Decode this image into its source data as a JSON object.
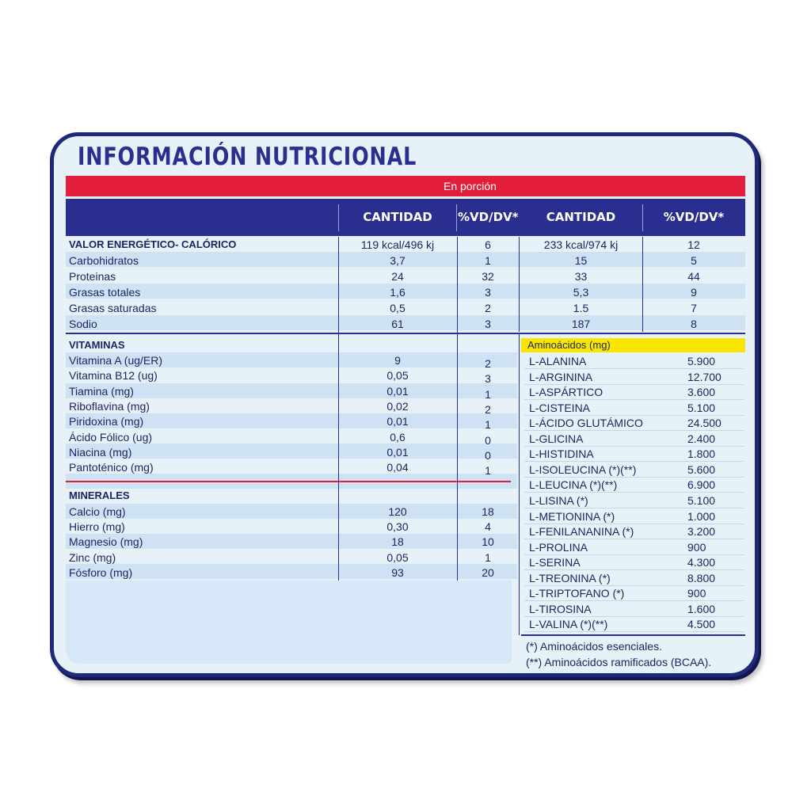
{
  "title": "INFORMACIÓN NUTRICIONAL",
  "portion_label": "En porción",
  "headers": [
    "CANTIDAD",
    "%VD/DV*",
    "CANTIDAD",
    "%VD/DV*"
  ],
  "colors": {
    "navy": "#2a2f8f",
    "red": "#e31e3a",
    "yellow": "#f8e600",
    "panel": "#e6f1f8",
    "band": "#cfe2f3"
  },
  "energy_rows": [
    {
      "label": "VALOR ENERGÉTICO- CALÓRICO",
      "q1": "119 kcal/496 kj",
      "p1": "6",
      "q2": "233 kcal/974 kj",
      "p2": "12"
    },
    {
      "label": "Carbohidratos",
      "q1": "3,7",
      "p1": "1",
      "q2": "15",
      "p2": "5"
    },
    {
      "label": "Proteinas",
      "q1": "24",
      "p1": "32",
      "q2": "33",
      "p2": "44"
    },
    {
      "label": "Grasas totales",
      "q1": "1,6",
      "p1": "3",
      "q2": "5,3",
      "p2": "9"
    },
    {
      "label": "Grasas saturadas",
      "q1": "0,5",
      "p1": "2",
      "q2": "1.5",
      "p2": "7"
    },
    {
      "label": "Sodio",
      "q1": "61",
      "p1": "3",
      "q2": "187",
      "p2": "8"
    }
  ],
  "vitamins_title": "VITAMINAS",
  "vitamins": [
    {
      "label": "Vitamina A (ug/ER)",
      "q": "9",
      "p": "2"
    },
    {
      "label": "Vitamina B12 (ug)",
      "q": "0,05",
      "p": "3"
    },
    {
      "label": "Tiamina (mg)",
      "q": "0,01",
      "p": "1"
    },
    {
      "label": "Riboflavina (mg)",
      "q": "0,02",
      "p": "2"
    },
    {
      "label": "Piridoxina (mg)",
      "q": "0,01",
      "p": "1"
    },
    {
      "label": "Ácido Fólico (ug)",
      "q": "0,6",
      "p": "0"
    },
    {
      "label": "Niacina (mg)",
      "q": "0,01",
      "p": "0"
    },
    {
      "label": "Pantoténico (mg)",
      "q": "0,04",
      "p": "1"
    }
  ],
  "minerals_title": "MINERALES",
  "minerals": [
    {
      "label": "Calcio (mg)",
      "q": "120",
      "p": "18"
    },
    {
      "label": "Hierro (mg)",
      "q": "0,30",
      "p": "4"
    },
    {
      "label": "Magnesio (mg)",
      "q": "18",
      "p": "10"
    },
    {
      "label": "Zinc (mg)",
      "q": "0,05",
      "p": "1"
    },
    {
      "label": "Fósforo (mg)",
      "q": "93",
      "p": "20"
    }
  ],
  "amino_title": "Aminoácidos (mg)",
  "aminoacids": [
    {
      "name": "L-ALANINA",
      "value": "5.900"
    },
    {
      "name": "L-ARGININA",
      "value": "12.700"
    },
    {
      "name": "L-ASPÁRTICO",
      "value": "3.600"
    },
    {
      "name": "L-CISTEINA",
      "value": "5.100"
    },
    {
      "name": "L-ÁCIDO GLUTÁMICO",
      "value": "24.500"
    },
    {
      "name": "L-GLICINA",
      "value": "2.400"
    },
    {
      "name": "L-HISTIDINA",
      "value": "1.800"
    },
    {
      "name": "L-ISOLEUCINA (*)(**)",
      "value": "5.600"
    },
    {
      "name": "L-LEUCINA (*)(**)",
      "value": "6.900"
    },
    {
      "name": "L-LISINA (*)",
      "value": "5.100"
    },
    {
      "name": "L-METIONINA (*)",
      "value": "1.000"
    },
    {
      "name": "L-FENILANANINA (*)",
      "value": "3.200"
    },
    {
      "name": "L-PROLINA",
      "value": "900"
    },
    {
      "name": "L-SERINA",
      "value": "4.300"
    },
    {
      "name": "L-TREONINA (*)",
      "value": "8.800"
    },
    {
      "name": "L-TRIPTOFANO (*)",
      "value": "900"
    },
    {
      "name": "L-TIROSINA",
      "value": "1.600"
    },
    {
      "name": "L-VALINA (*)(**)",
      "value": "4.500"
    }
  ],
  "footnotes": [
    "(*) Aminoácidos esenciales.",
    "(**) Aminoácidos ramificados (BCAA)."
  ]
}
